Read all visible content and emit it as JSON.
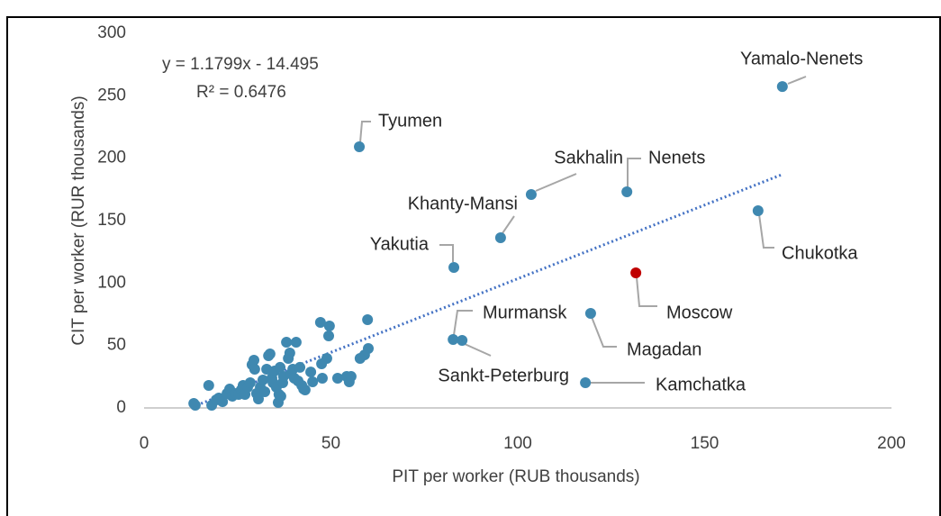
{
  "chart_data": {
    "type": "scatter",
    "x_label": "PIT per worker (RUB thousands)",
    "y_label": "CIT per worker (RUR thousands)",
    "xlim": [
      0,
      200
    ],
    "xticks": [
      0,
      50,
      100,
      150,
      200
    ],
    "ylim": [
      0,
      300
    ],
    "yticks": [
      0,
      50,
      100,
      150,
      200,
      250,
      300
    ],
    "trendline": {
      "equation": "y = 1.1799x - 14.495",
      "r_squared": "R² = 0.6476",
      "slope": 1.1799,
      "intercept": -14.495,
      "x_range": [
        13,
        171
      ],
      "color": "#4472c4"
    },
    "series": [
      {
        "color": "#3f88b0",
        "x": [
          13.3,
          13.7,
          17.3,
          18.1,
          19.3,
          20.0,
          21.0,
          22.2,
          22.9,
          23.6,
          24.6,
          25.3,
          26.0,
          26.5,
          27.0,
          27.7,
          28.4,
          28.9,
          29.4,
          29.6,
          30.1,
          30.6,
          31.1,
          31.8,
          32.3,
          32.8,
          33.3,
          33.7,
          34.2,
          34.5,
          34.9,
          35.4,
          35.9,
          36.1,
          36.6,
          37.1,
          37.3,
          38.1,
          38.6,
          39.0,
          39.3,
          39.8,
          40.2,
          40.7,
          41.2,
          41.7,
          42.2,
          42.7,
          43.1,
          44.6,
          47.2,
          47.7,
          48.9,
          49.4,
          49.6,
          47.5,
          45.1,
          51.8,
          54.2,
          54.9,
          55.4,
          60.0,
          59.0,
          59.8,
          57.8,
          36.4
        ],
        "values": [
          3.6,
          2.2,
          18.0,
          2.2,
          6.5,
          7.9,
          5.0,
          11.5,
          15.1,
          9.4,
          11.5,
          10.8,
          14.4,
          18.0,
          10.8,
          16.6,
          20.2,
          34.6,
          38.2,
          31.0,
          11.5,
          7.2,
          16.6,
          22.4,
          13.0,
          31.0,
          41.8,
          43.3,
          23.8,
          20.2,
          29.6,
          16.6,
          4.3,
          10.8,
          9.4,
          20.2,
          25.2,
          52.6,
          39.7,
          44.0,
          27.4,
          31.0,
          23.8,
          52.6,
          21.6,
          32.5,
          18.0,
          15.1,
          14.4,
          28.8,
          68.5,
          23.8,
          39.7,
          57.7,
          65.6,
          35.3,
          20.9,
          23.8,
          25.2,
          20.9,
          25.2,
          47.6,
          42.5,
          70.7,
          39.7,
          32.5
        ]
      },
      {
        "color": "#3f88b0",
        "labels": [
          "Yamalo-Nenets",
          "Tyumen",
          "Sakhalin",
          "Nenets",
          "Khanty-Mansi",
          "Chukotka",
          "Yakutia",
          "Murmansk",
          "Magadan",
          "Sankt-Peterburg",
          "Kamchatka"
        ],
        "x": [
          170.8,
          57.6,
          103.6,
          129.2,
          95.4,
          164.3,
          82.9,
          82.7,
          119.5,
          85.1,
          118.1
        ],
        "values": [
          257.4,
          209.1,
          170.9,
          173.1,
          136.3,
          157.9,
          112.5,
          54.8,
          75.7,
          54.1,
          20.2
        ]
      },
      {
        "color": "#c00000",
        "labels": [
          "Moscow"
        ],
        "x": [
          131.6
        ],
        "values": [
          108.2
        ]
      }
    ]
  }
}
